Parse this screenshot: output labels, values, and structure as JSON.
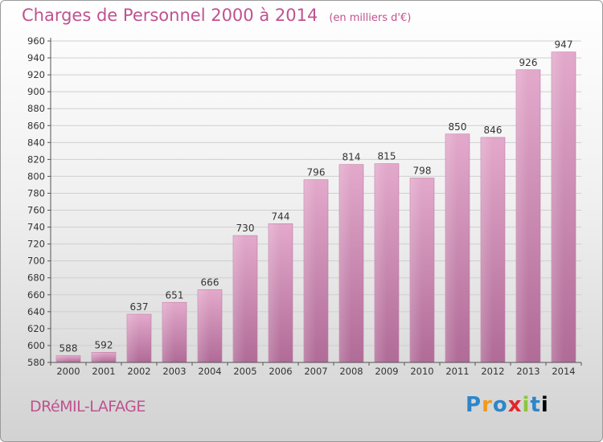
{
  "header": {
    "title": "Charges de Personnel 2000 à 2014",
    "unit": "(en milliers d'€)"
  },
  "footer": {
    "commune": "DRéMIL-LAFAGE",
    "brand_letters": [
      "P",
      "r",
      "o",
      "x",
      "i",
      "t",
      "i"
    ]
  },
  "chart_data": {
    "type": "bar",
    "title": "Charges de Personnel 2000 à 2014",
    "categories": [
      "2000",
      "2001",
      "2002",
      "2003",
      "2004",
      "2005",
      "2006",
      "2007",
      "2008",
      "2009",
      "2010",
      "2011",
      "2012",
      "2013",
      "2014"
    ],
    "values": [
      588,
      592,
      637,
      651,
      666,
      730,
      744,
      796,
      814,
      815,
      798,
      850,
      846,
      926,
      947
    ],
    "ylim": [
      580,
      960
    ],
    "yticks": [
      580,
      600,
      620,
      640,
      660,
      680,
      700,
      720,
      740,
      760,
      780,
      800,
      820,
      840,
      860,
      880,
      900,
      920,
      940,
      960
    ],
    "grid": true,
    "bar_color_top": "#e3a9cb",
    "bar_color_bottom": "#b06b97"
  }
}
